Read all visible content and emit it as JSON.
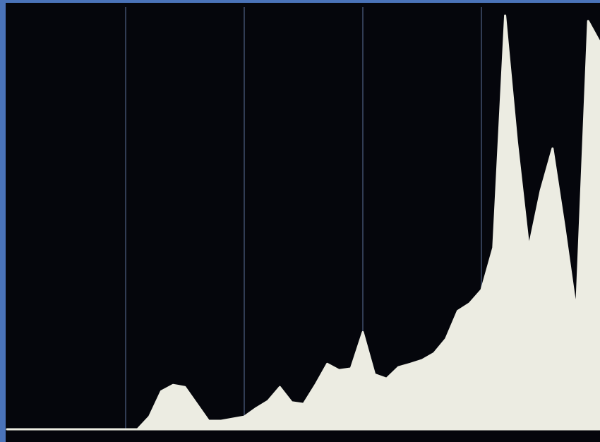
{
  "chart_data": {
    "type": "area",
    "x": [
      0,
      5,
      10,
      15,
      20,
      25,
      30,
      35,
      40,
      45,
      50,
      55,
      60,
      65,
      70,
      75,
      80,
      85,
      90,
      95,
      100,
      105,
      110,
      115,
      120,
      125,
      130,
      135,
      140,
      145,
      150,
      155,
      160,
      165,
      170,
      175,
      180,
      185,
      190,
      195,
      200,
      205,
      210,
      215,
      220,
      225,
      230,
      235,
      240,
      245,
      250
    ],
    "values": [
      0,
      0,
      0,
      0,
      0,
      0,
      0,
      0,
      0,
      0,
      0,
      0,
      3,
      9,
      10.5,
      10,
      6,
      2,
      2,
      2.5,
      3,
      5,
      6.7,
      10,
      6.4,
      6,
      10.5,
      15.5,
      14,
      14.4,
      23,
      13,
      12,
      14.7,
      15.5,
      16.4,
      18,
      21.4,
      28,
      29.8,
      33,
      43,
      98,
      68,
      43,
      56.5,
      66.5,
      48,
      28,
      96.7,
      91.6
    ],
    "color": "#ecece2",
    "xlim": [
      0,
      250
    ],
    "ylim": [
      0,
      100
    ],
    "xticks": [
      50,
      100,
      150,
      200
    ],
    "grid": true
  }
}
